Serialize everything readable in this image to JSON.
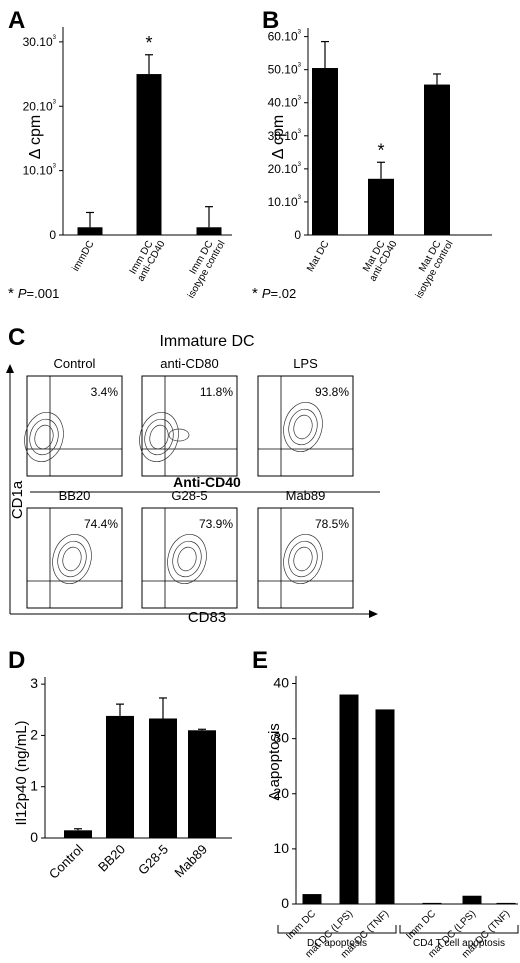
{
  "panels": {
    "A": {
      "letter": "A",
      "ylabel": "Δ cpm",
      "footnote_star": "*",
      "footnote_p": "P",
      "footnote_val": "=.001",
      "ticks": [
        {
          "v": 0,
          "label": "0"
        },
        {
          "v": 10,
          "label": "10.10",
          "sup": "3"
        },
        {
          "v": 20,
          "label": "20.10",
          "sup": "3"
        },
        {
          "v": 30,
          "label": "30.10",
          "sup": "3"
        }
      ]
    },
    "B": {
      "letter": "B",
      "ylabel": "Δ cpm",
      "footnote_star": "*",
      "footnote_p": "P",
      "footnote_val": "=.02",
      "ticks": [
        {
          "v": 0,
          "label": "0"
        },
        {
          "v": 10,
          "label": "10.10",
          "sup": "3"
        },
        {
          "v": 20,
          "label": "20.10",
          "sup": "3"
        },
        {
          "v": 30,
          "label": "30.10",
          "sup": "3"
        },
        {
          "v": 40,
          "label": "40.10",
          "sup": "3"
        },
        {
          "v": 50,
          "label": "50.10",
          "sup": "3"
        },
        {
          "v": 60,
          "label": "60.10",
          "sup": "3"
        }
      ]
    },
    "C": {
      "letter": "C",
      "title": "Immature DC",
      "ylabel": "CD1a",
      "xlabel": "CD83",
      "group_label": "Anti-CD40",
      "plots": [
        {
          "name": "Control",
          "pct": "3.4%"
        },
        {
          "name": "anti-CD80",
          "pct": "11.8%"
        },
        {
          "name": "LPS",
          "pct": "93.8%"
        },
        {
          "name": "BB20",
          "pct": "74.4%"
        },
        {
          "name": "G28-5",
          "pct": "73.9%"
        },
        {
          "name": "Mab89",
          "pct": "78.5%"
        }
      ]
    },
    "D": {
      "letter": "D",
      "ylabel": "Il12p40 (ng/mL)",
      "ticks": [
        {
          "v": 0,
          "label": "0"
        },
        {
          "v": 1,
          "label": "1"
        },
        {
          "v": 2,
          "label": "2"
        },
        {
          "v": 3,
          "label": "3"
        }
      ]
    },
    "E": {
      "letter": "E",
      "ylabel": "Δ apoptosis",
      "group1": "DC apoptosis",
      "group2": "CD4 T cell apoptosis",
      "ticks": [
        {
          "v": 0,
          "label": "0"
        },
        {
          "v": 10,
          "label": "10"
        },
        {
          "v": 20,
          "label": "20"
        },
        {
          "v": 30,
          "label": "30"
        },
        {
          "v": 40,
          "label": "40"
        }
      ]
    }
  },
  "chart_data": [
    {
      "panel": "A",
      "type": "bar",
      "categories": [
        "immDC",
        "Imm DC anti-CD40",
        "Imm DC isotype control"
      ],
      "values": [
        1.2,
        25,
        1.2
      ],
      "errors": [
        2.3,
        3,
        3.2
      ],
      "significance": [
        "",
        "*",
        ""
      ],
      "ylabel": "Δ cpm",
      "ylim": [
        0,
        32
      ]
    },
    {
      "panel": "B",
      "type": "bar",
      "categories": [
        "Mat DC",
        "Mat DC anti-CD40",
        "Mat DC isotype control"
      ],
      "values": [
        50.5,
        17,
        45.5
      ],
      "errors": [
        8,
        5,
        3.2
      ],
      "significance": [
        "",
        "*",
        ""
      ],
      "ylabel": "Δ cpm",
      "ylim": [
        0,
        62
      ]
    },
    {
      "panel": "D",
      "type": "bar",
      "categories": [
        "Control",
        "BB20",
        "G28-5",
        "Mab89"
      ],
      "values": [
        0.15,
        2.38,
        2.33,
        2.1
      ],
      "errors": [
        0.03,
        0.23,
        0.4,
        0.02
      ],
      "ylabel": "Il12p40 (ng/mL)",
      "ylim": [
        0,
        3.1
      ]
    },
    {
      "panel": "E",
      "type": "bar",
      "categories": [
        "Imm DC",
        "mat DC (LPS)",
        "mat DC (TNF)",
        "Imm DC",
        "mat DC (LPS)",
        "mat DC (TNF)"
      ],
      "groups": [
        "DC apoptosis",
        "DC apoptosis",
        "DC apoptosis",
        "CD4 T cell apoptosis",
        "CD4 T cell apoptosis",
        "CD4 T cell apoptosis"
      ],
      "values": [
        1.8,
        38,
        35.3,
        0.2,
        1.5,
        0.2
      ],
      "ylabel": "Δ apoptosis",
      "ylim": [
        0,
        41
      ]
    }
  ]
}
